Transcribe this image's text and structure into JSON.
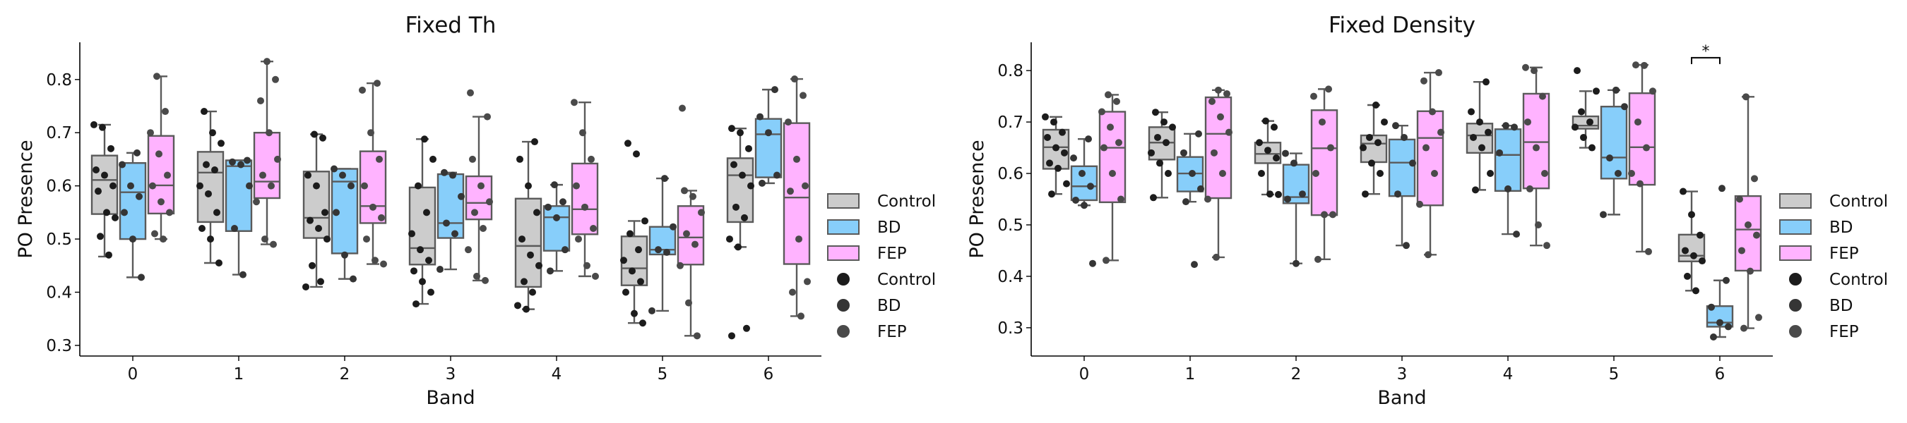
{
  "chart_data": [
    {
      "type": "box",
      "title": "Fixed Th",
      "xlabel": "Band",
      "ylabel": "PO Presence",
      "categories": [
        "0",
        "1",
        "2",
        "3",
        "4",
        "5",
        "6"
      ],
      "ylim": [
        0.28,
        0.87
      ],
      "yticks": [
        "0.3",
        "0.4",
        "0.5",
        "0.6",
        "0.7",
        "0.8"
      ],
      "grid": false,
      "legend": {
        "placement": "right",
        "box_entries": [
          "Control",
          "BD",
          "FEP"
        ],
        "point_entries": [
          "Control",
          "BD",
          "FEP"
        ]
      },
      "series": [
        {
          "name": "Control",
          "color": "#cccccc",
          "boxes": [
            {
              "q1": 0.547,
              "median": 0.611,
              "q3": 0.657,
              "lo": 0.467,
              "hi": 0.715,
              "fliers": [],
              "points": [
                0.715,
                0.71,
                0.67,
                0.63,
                0.62,
                0.6,
                0.59,
                0.55,
                0.54,
                0.505,
                0.47
              ]
            },
            {
              "q1": 0.532,
              "median": 0.625,
              "q3": 0.664,
              "lo": 0.455,
              "hi": 0.74,
              "fliers": [],
              "points": [
                0.74,
                0.7,
                0.68,
                0.64,
                0.63,
                0.6,
                0.585,
                0.55,
                0.52,
                0.5,
                0.455
              ]
            },
            {
              "q1": 0.502,
              "median": 0.54,
              "q3": 0.627,
              "lo": 0.41,
              "hi": 0.697,
              "fliers": [],
              "points": [
                0.697,
                0.69,
                0.62,
                0.6,
                0.55,
                0.535,
                0.52,
                0.5,
                0.45,
                0.42,
                0.41
              ]
            },
            {
              "q1": 0.452,
              "median": 0.483,
              "q3": 0.597,
              "lo": 0.378,
              "hi": 0.688,
              "fliers": [],
              "points": [
                0.688,
                0.65,
                0.6,
                0.55,
                0.51,
                0.48,
                0.46,
                0.44,
                0.42,
                0.4,
                0.378
              ]
            },
            {
              "q1": 0.41,
              "median": 0.487,
              "q3": 0.576,
              "lo": 0.368,
              "hi": 0.683,
              "fliers": [],
              "points": [
                0.683,
                0.65,
                0.6,
                0.55,
                0.5,
                0.47,
                0.45,
                0.42,
                0.4,
                0.375,
                0.368
              ]
            },
            {
              "q1": 0.413,
              "median": 0.445,
              "q3": 0.505,
              "lo": 0.342,
              "hi": 0.534,
              "fliers": [
                0.68,
                0.66
              ],
              "points": [
                0.534,
                0.51,
                0.48,
                0.46,
                0.44,
                0.42,
                0.4,
                0.36,
                0.342
              ]
            },
            {
              "q1": 0.532,
              "median": 0.62,
              "q3": 0.652,
              "lo": 0.485,
              "hi": 0.708,
              "fliers": [
                0.332,
                0.318
              ],
              "points": [
                0.708,
                0.7,
                0.67,
                0.64,
                0.62,
                0.6,
                0.56,
                0.54,
                0.5,
                0.485
              ]
            }
          ]
        },
        {
          "name": "BD",
          "color": "#87cefa",
          "boxes": [
            {
              "q1": 0.5,
              "median": 0.588,
              "q3": 0.643,
              "lo": 0.428,
              "hi": 0.662,
              "fliers": [],
              "points": [
                0.662,
                0.64,
                0.6,
                0.58,
                0.55,
                0.5,
                0.428
              ]
            },
            {
              "q1": 0.515,
              "median": 0.637,
              "q3": 0.648,
              "lo": 0.433,
              "hi": 0.648,
              "fliers": [],
              "points": [
                0.648,
                0.645,
                0.64,
                0.6,
                0.52,
                0.433
              ]
            },
            {
              "q1": 0.473,
              "median": 0.608,
              "q3": 0.632,
              "lo": 0.425,
              "hi": 0.632,
              "fliers": [],
              "points": [
                0.632,
                0.62,
                0.6,
                0.55,
                0.47,
                0.425
              ]
            },
            {
              "q1": 0.502,
              "median": 0.53,
              "q3": 0.622,
              "lo": 0.443,
              "hi": 0.625,
              "fliers": [],
              "points": [
                0.625,
                0.62,
                0.58,
                0.53,
                0.51,
                0.443
              ]
            },
            {
              "q1": 0.478,
              "median": 0.541,
              "q3": 0.562,
              "lo": 0.44,
              "hi": 0.602,
              "fliers": [],
              "points": [
                0.602,
                0.57,
                0.56,
                0.54,
                0.48,
                0.44
              ]
            },
            {
              "q1": 0.471,
              "median": 0.48,
              "q3": 0.523,
              "lo": 0.365,
              "hi": 0.614,
              "fliers": [],
              "points": [
                0.614,
                0.523,
                0.48,
                0.475,
                0.365
              ]
            },
            {
              "q1": 0.616,
              "median": 0.697,
              "q3": 0.726,
              "lo": 0.605,
              "hi": 0.781,
              "fliers": [],
              "points": [
                0.781,
                0.73,
                0.7,
                0.62,
                0.605
              ]
            }
          ]
        },
        {
          "name": "FEP",
          "color": "#ffb3ff",
          "boxes": [
            {
              "q1": 0.548,
              "median": 0.601,
              "q3": 0.694,
              "lo": 0.5,
              "hi": 0.806,
              "fliers": [],
              "points": [
                0.806,
                0.74,
                0.7,
                0.66,
                0.62,
                0.6,
                0.57,
                0.55,
                0.51,
                0.5
              ]
            },
            {
              "q1": 0.577,
              "median": 0.608,
              "q3": 0.7,
              "lo": 0.49,
              "hi": 0.834,
              "fliers": [],
              "points": [
                0.834,
                0.8,
                0.76,
                0.7,
                0.65,
                0.62,
                0.6,
                0.57,
                0.5,
                0.49
              ]
            },
            {
              "q1": 0.53,
              "median": 0.562,
              "q3": 0.665,
              "lo": 0.453,
              "hi": 0.793,
              "fliers": [],
              "points": [
                0.793,
                0.78,
                0.7,
                0.65,
                0.6,
                0.56,
                0.54,
                0.5,
                0.46,
                0.453
              ]
            },
            {
              "q1": 0.537,
              "median": 0.568,
              "q3": 0.618,
              "lo": 0.422,
              "hi": 0.73,
              "fliers": [
                0.775
              ],
              "points": [
                0.73,
                0.65,
                0.6,
                0.57,
                0.55,
                0.52,
                0.48,
                0.43,
                0.422
              ]
            },
            {
              "q1": 0.509,
              "median": 0.556,
              "q3": 0.642,
              "lo": 0.43,
              "hi": 0.757,
              "fliers": [],
              "points": [
                0.757,
                0.7,
                0.65,
                0.6,
                0.56,
                0.52,
                0.5,
                0.45,
                0.43
              ]
            },
            {
              "q1": 0.452,
              "median": 0.503,
              "q3": 0.562,
              "lo": 0.318,
              "hi": 0.591,
              "fliers": [
                0.746
              ],
              "points": [
                0.591,
                0.58,
                0.55,
                0.51,
                0.49,
                0.45,
                0.38,
                0.318
              ]
            },
            {
              "q1": 0.453,
              "median": 0.578,
              "q3": 0.718,
              "lo": 0.355,
              "hi": 0.801,
              "fliers": [],
              "points": [
                0.801,
                0.77,
                0.72,
                0.65,
                0.6,
                0.59,
                0.5,
                0.42,
                0.4,
                0.355
              ]
            }
          ]
        }
      ]
    },
    {
      "type": "box",
      "title": "Fixed Density",
      "xlabel": "Band",
      "ylabel": "PO Presence",
      "categories": [
        "0",
        "1",
        "2",
        "3",
        "4",
        "5",
        "6"
      ],
      "ylim": [
        0.245,
        0.855
      ],
      "yticks": [
        "0.3",
        "0.4",
        "0.5",
        "0.6",
        "0.7",
        "0.8"
      ],
      "grid": false,
      "annotation": {
        "text": "*",
        "category": "6",
        "from_series": "Control",
        "to_series": "BD",
        "y": 0.825
      },
      "legend": {
        "placement": "right",
        "box_entries": [
          "Control",
          "BD",
          "FEP"
        ],
        "point_entries": [
          "Control",
          "BD",
          "FEP"
        ]
      },
      "series": [
        {
          "name": "Control",
          "color": "#cccccc",
          "boxes": [
            {
              "q1": 0.609,
              "median": 0.651,
              "q3": 0.685,
              "lo": 0.56,
              "hi": 0.71,
              "fliers": [],
              "points": [
                0.71,
                0.7,
                0.68,
                0.67,
                0.65,
                0.64,
                0.62,
                0.61,
                0.58,
                0.56
              ]
            },
            {
              "q1": 0.627,
              "median": 0.66,
              "q3": 0.69,
              "lo": 0.553,
              "hi": 0.719,
              "fliers": [],
              "points": [
                0.719,
                0.7,
                0.69,
                0.67,
                0.66,
                0.64,
                0.62,
                0.6,
                0.553
              ]
            },
            {
              "q1": 0.62,
              "median": 0.638,
              "q3": 0.66,
              "lo": 0.559,
              "hi": 0.702,
              "fliers": [],
              "points": [
                0.702,
                0.69,
                0.66,
                0.645,
                0.63,
                0.6,
                0.56,
                0.559
              ]
            },
            {
              "q1": 0.622,
              "median": 0.658,
              "q3": 0.674,
              "lo": 0.56,
              "hi": 0.733,
              "fliers": [],
              "points": [
                0.733,
                0.7,
                0.67,
                0.66,
                0.65,
                0.62,
                0.6,
                0.56
              ]
            },
            {
              "q1": 0.64,
              "median": 0.674,
              "q3": 0.697,
              "lo": 0.568,
              "hi": 0.778,
              "fliers": [],
              "points": [
                0.778,
                0.72,
                0.7,
                0.68,
                0.67,
                0.65,
                0.6,
                0.568
              ]
            },
            {
              "q1": 0.687,
              "median": 0.693,
              "q3": 0.711,
              "lo": 0.65,
              "hi": 0.76,
              "fliers": [
                0.8
              ],
              "points": [
                0.76,
                0.72,
                0.7,
                0.69,
                0.67,
                0.65
              ]
            },
            {
              "q1": 0.429,
              "median": 0.44,
              "q3": 0.481,
              "lo": 0.372,
              "hi": 0.565,
              "fliers": [],
              "points": [
                0.565,
                0.52,
                0.48,
                0.45,
                0.44,
                0.43,
                0.4,
                0.372
              ]
            }
          ]
        },
        {
          "name": "BD",
          "color": "#87cefa",
          "boxes": [
            {
              "q1": 0.548,
              "median": 0.575,
              "q3": 0.614,
              "lo": 0.538,
              "hi": 0.667,
              "fliers": [
                0.425
              ],
              "points": [
                0.667,
                0.63,
                0.6,
                0.575,
                0.548,
                0.538
              ]
            },
            {
              "q1": 0.565,
              "median": 0.6,
              "q3": 0.632,
              "lo": 0.545,
              "hi": 0.677,
              "fliers": [
                0.423
              ],
              "points": [
                0.677,
                0.64,
                0.6,
                0.57,
                0.545
              ]
            },
            {
              "q1": 0.542,
              "median": 0.554,
              "q3": 0.617,
              "lo": 0.425,
              "hi": 0.639,
              "fliers": [],
              "points": [
                0.639,
                0.62,
                0.56,
                0.55,
                0.425
              ]
            },
            {
              "q1": 0.556,
              "median": 0.621,
              "q3": 0.666,
              "lo": 0.46,
              "hi": 0.693,
              "fliers": [],
              "points": [
                0.693,
                0.67,
                0.62,
                0.56,
                0.46
              ]
            },
            {
              "q1": 0.566,
              "median": 0.636,
              "q3": 0.686,
              "lo": 0.482,
              "hi": 0.693,
              "fliers": [],
              "points": [
                0.693,
                0.69,
                0.64,
                0.57,
                0.482
              ]
            },
            {
              "q1": 0.59,
              "median": 0.631,
              "q3": 0.73,
              "lo": 0.52,
              "hi": 0.762,
              "fliers": [],
              "points": [
                0.762,
                0.73,
                0.63,
                0.6,
                0.52
              ]
            },
            {
              "q1": 0.302,
              "median": 0.31,
              "q3": 0.342,
              "lo": 0.282,
              "hi": 0.392,
              "fliers": [
                0.571
              ],
              "points": [
                0.392,
                0.34,
                0.31,
                0.302,
                0.282
              ]
            }
          ]
        },
        {
          "name": "FEP",
          "color": "#ffb3ff",
          "boxes": [
            {
              "q1": 0.544,
              "median": 0.65,
              "q3": 0.72,
              "lo": 0.431,
              "hi": 0.753,
              "fliers": [],
              "points": [
                0.753,
                0.74,
                0.72,
                0.69,
                0.66,
                0.65,
                0.6,
                0.55,
                0.431
              ]
            },
            {
              "q1": 0.552,
              "median": 0.677,
              "q3": 0.748,
              "lo": 0.437,
              "hi": 0.762,
              "fliers": [],
              "points": [
                0.762,
                0.755,
                0.74,
                0.71,
                0.68,
                0.64,
                0.6,
                0.55,
                0.437
              ]
            },
            {
              "q1": 0.519,
              "median": 0.649,
              "q3": 0.723,
              "lo": 0.433,
              "hi": 0.764,
              "fliers": [],
              "points": [
                0.764,
                0.75,
                0.7,
                0.65,
                0.6,
                0.52,
                0.52,
                0.433
              ]
            },
            {
              "q1": 0.538,
              "median": 0.669,
              "q3": 0.721,
              "lo": 0.442,
              "hi": 0.796,
              "fliers": [],
              "points": [
                0.796,
                0.78,
                0.72,
                0.68,
                0.65,
                0.6,
                0.54,
                0.442
              ]
            },
            {
              "q1": 0.571,
              "median": 0.661,
              "q3": 0.755,
              "lo": 0.46,
              "hi": 0.806,
              "fliers": [],
              "points": [
                0.806,
                0.8,
                0.75,
                0.7,
                0.65,
                0.6,
                0.57,
                0.5,
                0.46
              ]
            },
            {
              "q1": 0.578,
              "median": 0.651,
              "q3": 0.756,
              "lo": 0.448,
              "hi": 0.811,
              "fliers": [],
              "points": [
                0.811,
                0.81,
                0.76,
                0.7,
                0.65,
                0.6,
                0.58,
                0.448
              ]
            },
            {
              "q1": 0.411,
              "median": 0.491,
              "q3": 0.556,
              "lo": 0.299,
              "hi": 0.749,
              "fliers": [],
              "points": [
                0.749,
                0.59,
                0.55,
                0.5,
                0.48,
                0.45,
                0.41,
                0.32,
                0.299
              ]
            }
          ]
        }
      ]
    }
  ]
}
